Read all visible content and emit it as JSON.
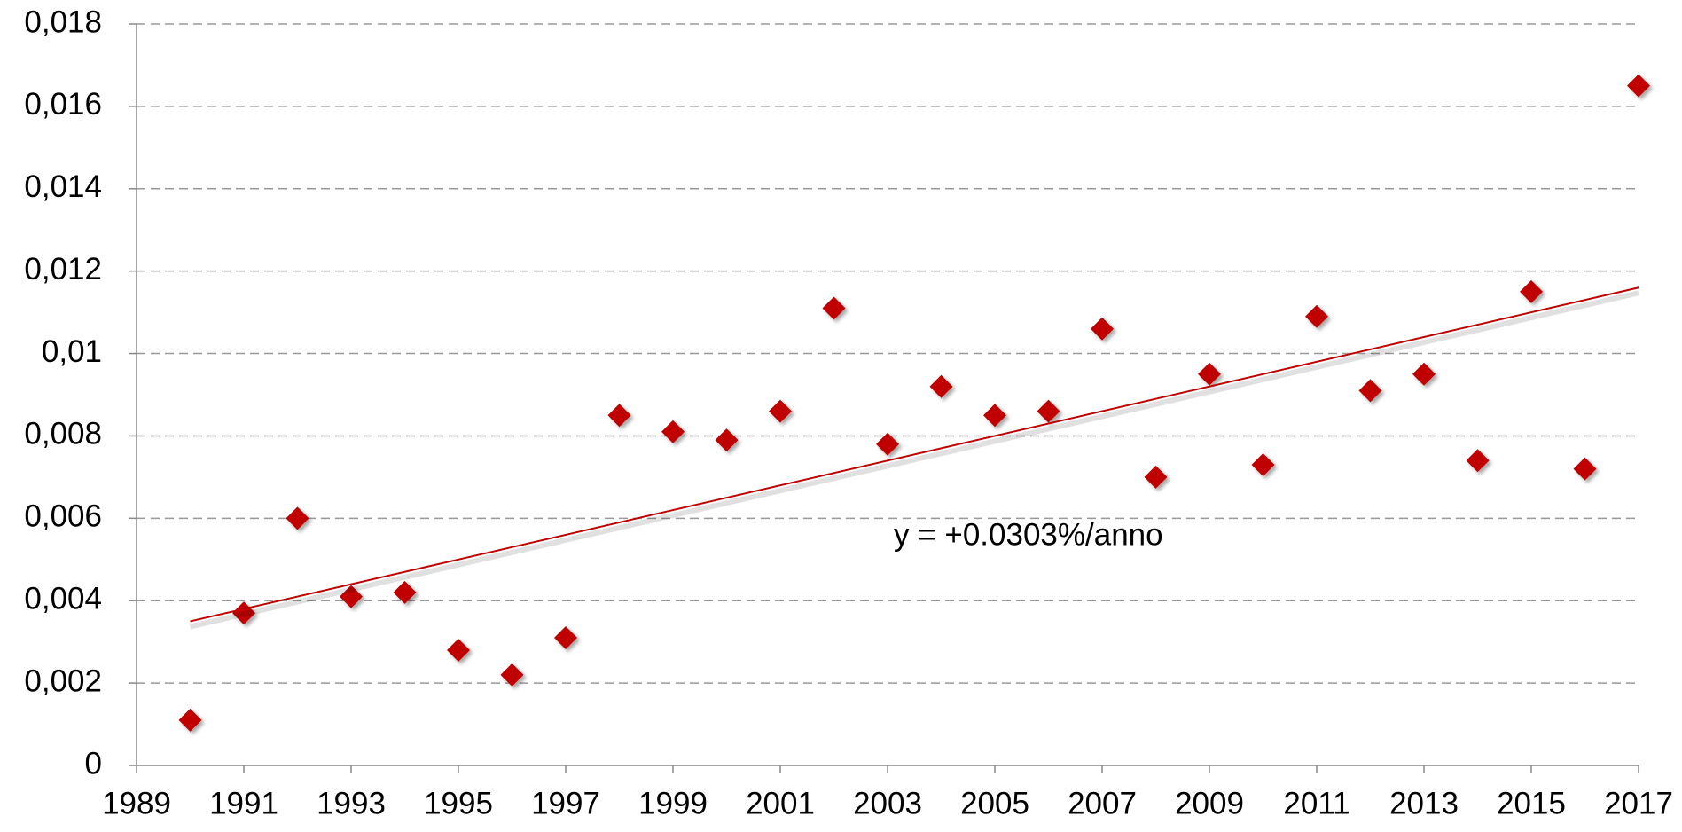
{
  "chart_data": {
    "type": "scatter",
    "x": [
      1990,
      1991,
      1992,
      1993,
      1994,
      1995,
      1996,
      1997,
      1998,
      1999,
      2000,
      2001,
      2002,
      2003,
      2004,
      2005,
      2006,
      2007,
      2008,
      2009,
      2010,
      2011,
      2012,
      2013,
      2014,
      2015,
      2016,
      2017
    ],
    "values": [
      0.0011,
      0.0037,
      0.006,
      0.0041,
      0.0042,
      0.0028,
      0.0022,
      0.0031,
      0.0085,
      0.0081,
      0.0079,
      0.0086,
      0.0111,
      0.0078,
      0.0092,
      0.0085,
      0.0086,
      0.0106,
      0.007,
      0.0095,
      0.0073,
      0.0109,
      0.0091,
      0.0095,
      0.0074,
      0.0115,
      0.0072,
      0.0165
    ],
    "color": "#c00000",
    "trendline": {
      "x": [
        1990,
        2017
      ],
      "values": [
        0.0035,
        0.0116
      ],
      "color": "#c00000"
    },
    "annotation": "y = +0.0303%/anno",
    "xlim": [
      1989,
      2017
    ],
    "xticks": [
      1989,
      1991,
      1993,
      1995,
      1997,
      1999,
      2001,
      2003,
      2005,
      2007,
      2009,
      2011,
      2013,
      2015,
      2017
    ],
    "ylim": [
      0,
      0.018
    ],
    "yticks": [
      0,
      {
        "value": 0.002,
        "label": "0,002"
      },
      {
        "value": 0.004,
        "label": "0,004"
      },
      {
        "value": 0.006,
        "label": "0,006"
      },
      {
        "value": 0.008,
        "label": "0,008"
      },
      {
        "value": 0.01,
        "label": "0,01"
      },
      {
        "value": 0.012,
        "label": "0,012"
      },
      {
        "value": 0.014,
        "label": "0,014"
      },
      {
        "value": 0.016,
        "label": "0,016"
      },
      {
        "value": 0.018,
        "label": "0,018"
      }
    ],
    "grid": true
  }
}
